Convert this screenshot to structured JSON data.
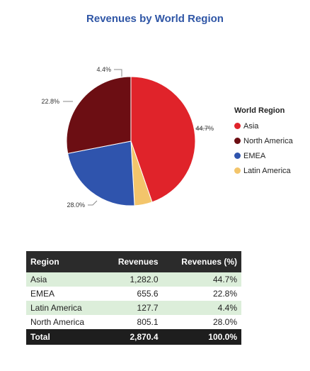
{
  "chart_data": {
    "type": "pie",
    "title": "Revenues by World Region",
    "legend_title": "World Region",
    "legend_position": "right",
    "slices": [
      {
        "name": "Asia",
        "value": 1282.0,
        "label": "44.7%",
        "color": "#e0232a"
      },
      {
        "name": "Latin America",
        "value": 127.7,
        "label": "4.4%",
        "color": "#f3c56b"
      },
      {
        "name": "EMEA",
        "value": 655.6,
        "label": "22.8%",
        "color": "#2f54ad"
      },
      {
        "name": "North America",
        "value": 805.1,
        "label": "28.0%",
        "color": "#6c0e13"
      }
    ],
    "legend_order": [
      "Asia",
      "North America",
      "EMEA",
      "Latin America"
    ]
  },
  "table": {
    "headers": {
      "region": "Region",
      "revenues": "Revenues",
      "revenues_pct": "Revenues (%)"
    },
    "rows": [
      {
        "region": "Asia",
        "revenues": "1,282.0",
        "pct": "44.7%"
      },
      {
        "region": "EMEA",
        "revenues": "655.6",
        "pct": "22.8%"
      },
      {
        "region": "Latin America",
        "revenues": "127.7",
        "pct": "4.4%"
      },
      {
        "region": "North America",
        "revenues": "805.1",
        "pct": "28.0%"
      }
    ],
    "total": {
      "label": "Total",
      "revenues": "2,870.4",
      "pct": "100.0%"
    }
  }
}
